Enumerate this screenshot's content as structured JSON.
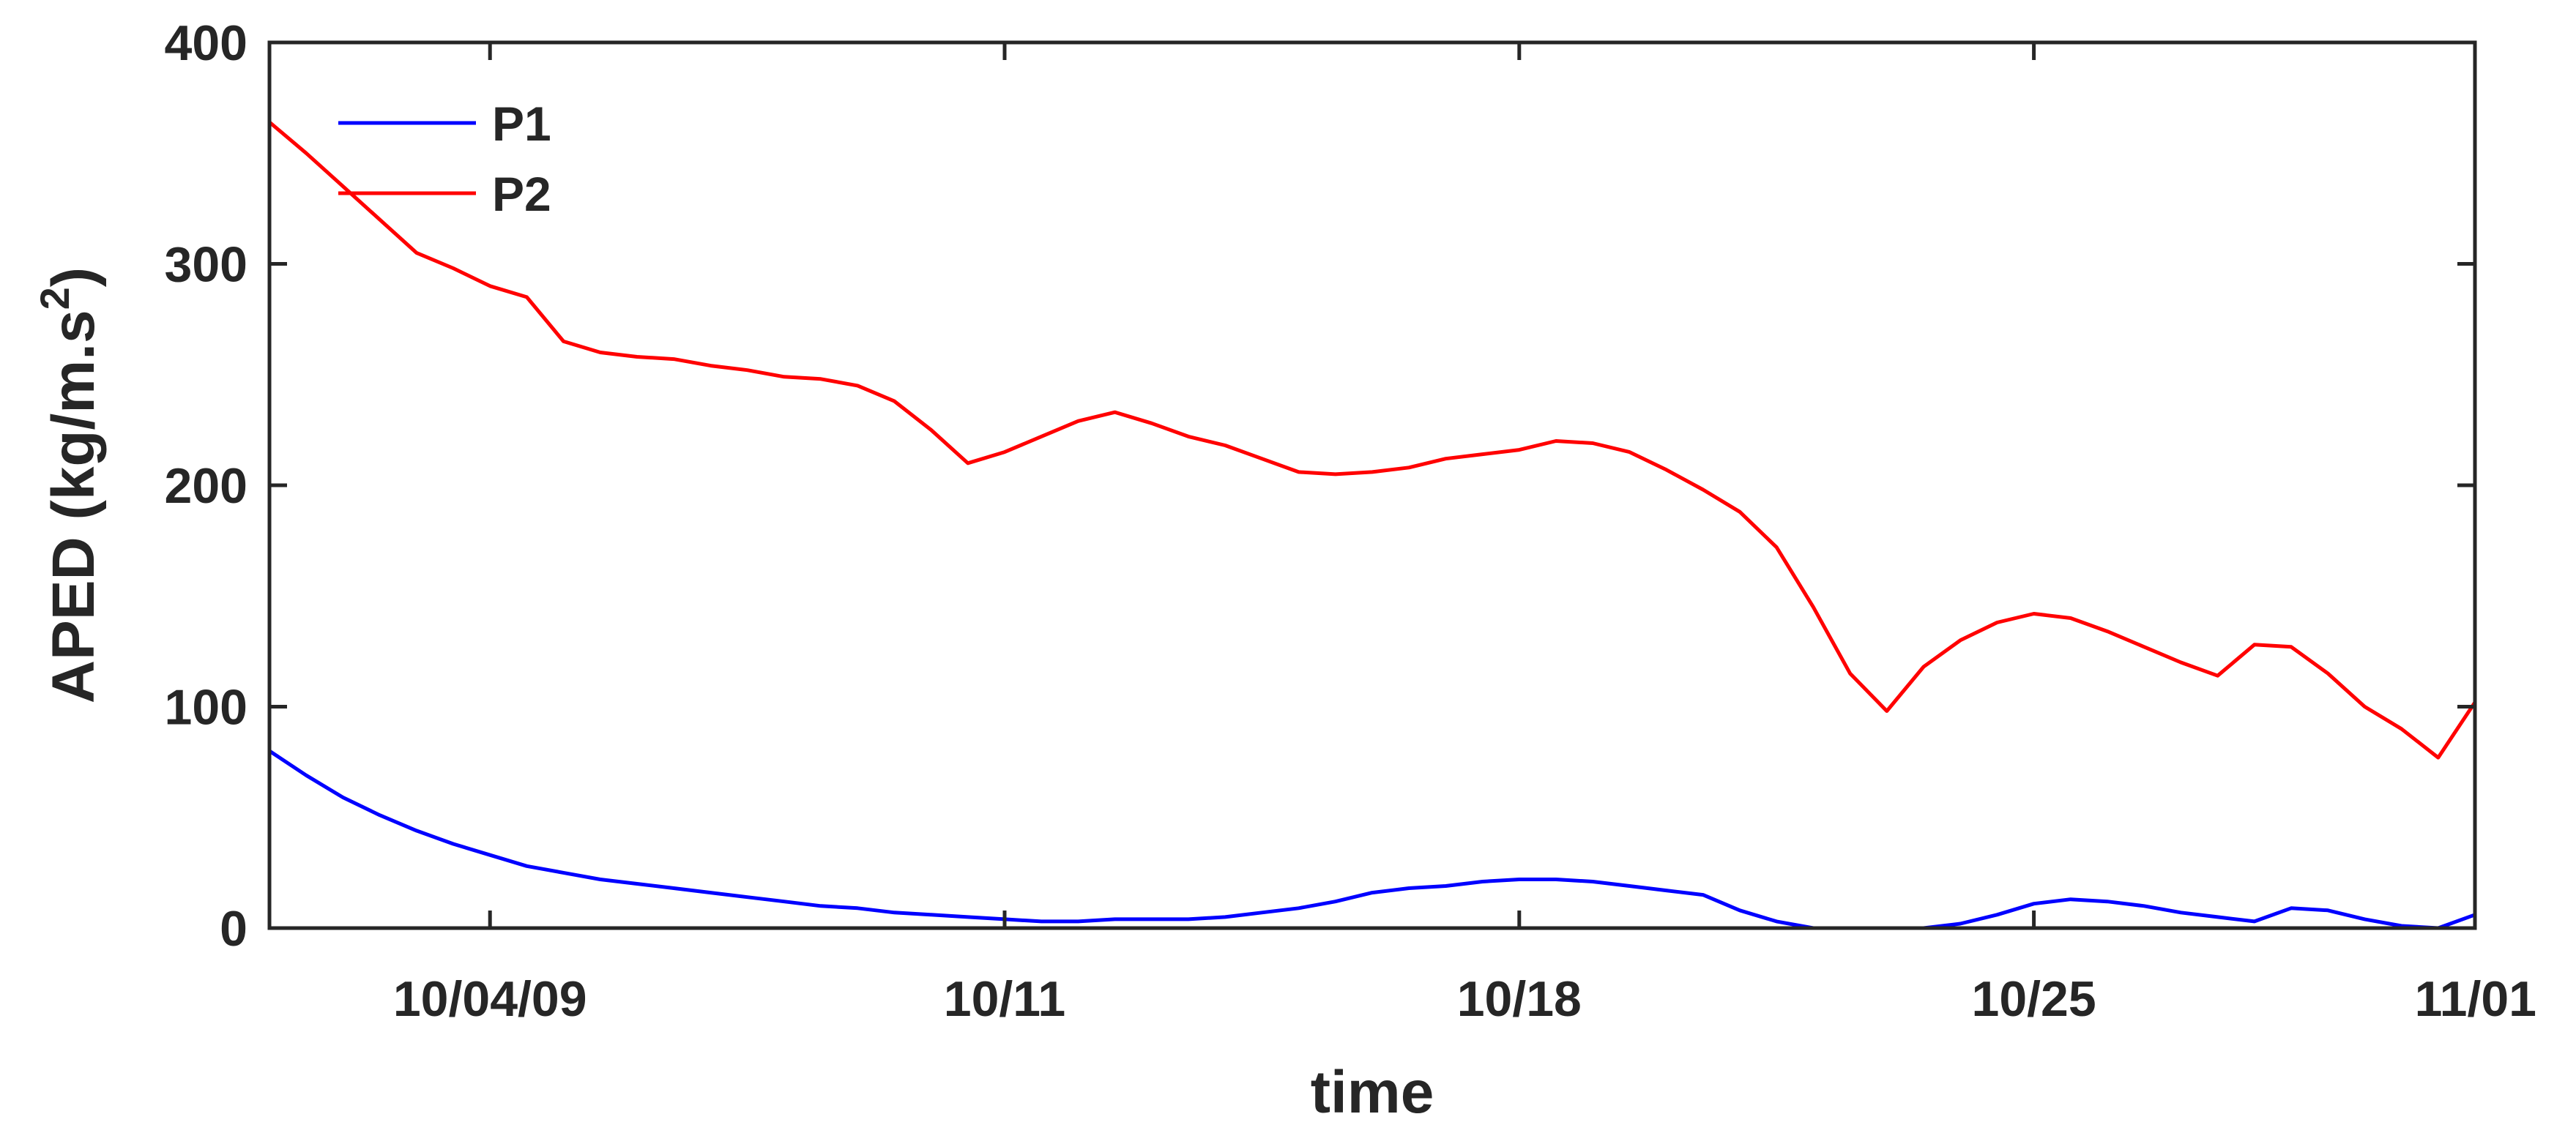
{
  "chart_data": {
    "type": "line",
    "xlabel": "time",
    "ylabel": "APED (kg/m.s",
    "ylabel_superscript": "2",
    "ylabel_suffix": ")",
    "ylim": [
      0,
      400
    ],
    "xlim": [
      0,
      30
    ],
    "y_ticks": [
      {
        "value": 0,
        "label": "0"
      },
      {
        "value": 100,
        "label": "100"
      },
      {
        "value": 200,
        "label": "200"
      },
      {
        "value": 300,
        "label": "300"
      },
      {
        "value": 400,
        "label": "400"
      }
    ],
    "x_ticks": [
      {
        "value": 3,
        "label": "10/04/09"
      },
      {
        "value": 10,
        "label": "10/11"
      },
      {
        "value": 17,
        "label": "10/18"
      },
      {
        "value": 24,
        "label": "10/25"
      },
      {
        "value": 31,
        "label": "11/01"
      }
    ],
    "grid": false,
    "legend_position": "top-left",
    "series": [
      {
        "name": "P1",
        "color": "#0000ff",
        "x": [
          0,
          0.5,
          1,
          1.5,
          2,
          2.5,
          3,
          3.5,
          4,
          4.5,
          5,
          5.5,
          6,
          6.5,
          7,
          7.5,
          8,
          8.5,
          9,
          9.5,
          10,
          10.5,
          11,
          11.5,
          12,
          12.5,
          13,
          13.5,
          14,
          14.5,
          15,
          15.5,
          16,
          16.5,
          17,
          17.5,
          18,
          18.5,
          19,
          19.5,
          20,
          20.5,
          21,
          21.5,
          22,
          22.5,
          23,
          23.5,
          24,
          24.5,
          25,
          25.5,
          26,
          26.5,
          27,
          27.5,
          28,
          28.5,
          29,
          29.5,
          30
        ],
        "y": [
          80,
          69,
          59,
          51,
          44,
          38,
          33,
          28,
          25,
          22,
          20,
          18,
          16,
          14,
          12,
          10,
          9,
          7,
          6,
          5,
          4,
          3,
          3,
          4,
          4,
          4,
          5,
          7,
          9,
          12,
          16,
          18,
          19,
          21,
          22,
          22,
          21,
          19,
          17,
          15,
          8,
          3,
          0,
          0,
          0,
          0,
          2,
          6,
          11,
          13,
          12,
          10,
          7,
          5,
          3,
          9,
          8,
          4,
          1,
          0,
          6
        ]
      },
      {
        "name": "P2",
        "color": "#ff0000",
        "x": [
          0,
          0.5,
          1,
          1.5,
          2,
          2.5,
          3,
          3.5,
          4,
          4.5,
          5,
          5.5,
          6,
          6.5,
          7,
          7.5,
          8,
          8.5,
          9,
          9.5,
          10,
          10.5,
          11,
          11.5,
          12,
          12.5,
          13,
          13.5,
          14,
          14.5,
          15,
          15.5,
          16,
          16.5,
          17,
          17.5,
          18,
          18.5,
          19,
          19.5,
          20,
          20.5,
          21,
          21.5,
          22,
          22.5,
          23,
          23.5,
          24,
          24.5,
          25,
          25.5,
          26,
          26.5,
          27,
          27.5,
          28,
          28.5,
          29,
          29.5,
          30
        ],
        "y": [
          364,
          350,
          335,
          320,
          305,
          298,
          290,
          285,
          265,
          260,
          258,
          257,
          254,
          252,
          249,
          248,
          245,
          238,
          225,
          210,
          215,
          222,
          229,
          233,
          228,
          222,
          218,
          212,
          206,
          205,
          206,
          208,
          212,
          214,
          216,
          220,
          219,
          215,
          207,
          198,
          188,
          172,
          145,
          115,
          98,
          118,
          130,
          138,
          142,
          140,
          134,
          127,
          120,
          114,
          128,
          127,
          115,
          100,
          90,
          77,
          102
        ]
      }
    ]
  }
}
